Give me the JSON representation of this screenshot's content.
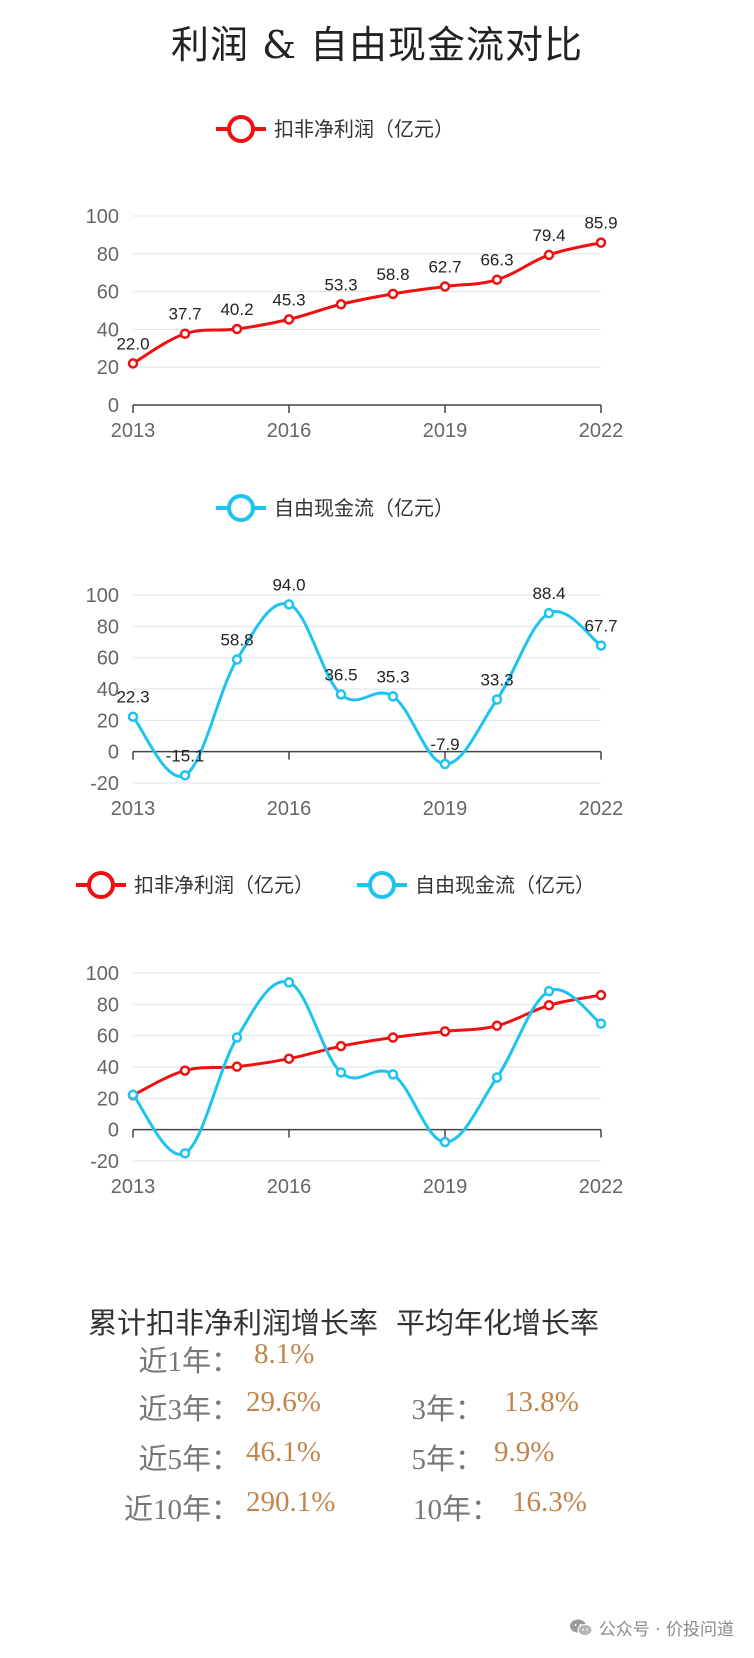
{
  "title": "利润 & 自由现金流对比",
  "colors": {
    "profit": "#ee1111",
    "fcf": "#1ec3f0",
    "axis": "#444444",
    "grid": "#e0e3ef",
    "tick": "#666666"
  },
  "legend": {
    "profit": "扣非净利润（亿元）",
    "fcf": "自由现金流（亿元）"
  },
  "chart_data": [
    {
      "type": "line",
      "title": "",
      "x": [
        2013,
        2014,
        2015,
        2016,
        2017,
        2018,
        2019,
        2020,
        2021,
        2022
      ],
      "x_tick_labels": [
        "2013",
        "2016",
        "2019",
        "2022"
      ],
      "y_tick_labels": [
        "0",
        "20",
        "40",
        "60",
        "80",
        "100"
      ],
      "ylim": [
        0,
        100
      ],
      "series": [
        {
          "name": "扣非净利润（亿元）",
          "values": [
            22.0,
            37.7,
            40.2,
            45.3,
            53.3,
            58.8,
            62.7,
            66.3,
            79.4,
            85.9
          ],
          "labels": [
            "22.0",
            "37.7",
            "40.2",
            "45.3",
            "53.3",
            "58.8",
            "62.7",
            "66.3",
            "79.4",
            "85.9"
          ]
        }
      ],
      "smooth": true,
      "grid": true,
      "legend_position": "top-center"
    },
    {
      "type": "line",
      "title": "",
      "x": [
        2013,
        2014,
        2015,
        2016,
        2017,
        2018,
        2019,
        2020,
        2021,
        2022
      ],
      "x_tick_labels": [
        "2013",
        "2016",
        "2019",
        "2022"
      ],
      "y_tick_labels": [
        "-20",
        "0",
        "20",
        "40",
        "60",
        "80",
        "100"
      ],
      "ylim": [
        -20,
        100
      ],
      "series": [
        {
          "name": "自由现金流（亿元）",
          "values": [
            22.3,
            -15.1,
            58.8,
            94.0,
            36.5,
            35.3,
            -7.9,
            33.3,
            88.4,
            67.7
          ],
          "labels": [
            "22.3",
            "-15.1",
            "58.8",
            "94.0",
            "36.5",
            "35.3",
            "-7.9",
            "33.3",
            "88.4",
            "67.7"
          ]
        }
      ],
      "smooth": true,
      "grid": true,
      "legend_position": "top-center"
    },
    {
      "type": "line",
      "title": "",
      "x": [
        2013,
        2014,
        2015,
        2016,
        2017,
        2018,
        2019,
        2020,
        2021,
        2022
      ],
      "x_tick_labels": [
        "2013",
        "2016",
        "2019",
        "2022"
      ],
      "y_tick_labels": [
        "-20",
        "0",
        "20",
        "40",
        "60",
        "80",
        "100"
      ],
      "ylim": [
        -20,
        100
      ],
      "series": [
        {
          "name": "扣非净利润（亿元）",
          "values": [
            22.0,
            37.7,
            40.2,
            45.3,
            53.3,
            58.8,
            62.7,
            66.3,
            79.4,
            85.9
          ]
        },
        {
          "name": "自由现金流（亿元）",
          "values": [
            22.3,
            -15.1,
            58.8,
            94.0,
            36.5,
            35.3,
            -7.9,
            33.3,
            88.4,
            67.7
          ]
        }
      ],
      "smooth": true,
      "grid": true,
      "legend_position": "top-center"
    }
  ],
  "stats": {
    "header_cumulative": "累计扣非净利润增长率",
    "header_average": "平均年化增长率",
    "rows": [
      {
        "cum_label": "近1年：",
        "cum_value": "8.1%",
        "avg_label": "",
        "avg_value": ""
      },
      {
        "cum_label": "近3年：",
        "cum_value": "29.6%",
        "avg_label": "3年：",
        "avg_value": "13.8%"
      },
      {
        "cum_label": "近5年：",
        "cum_value": "46.1%",
        "avg_label": "5年：",
        "avg_value": "9.9%"
      },
      {
        "cum_label": "近10年：",
        "cum_value": "290.1%",
        "avg_label": "10年：",
        "avg_value": "16.3%"
      }
    ]
  },
  "watermark": {
    "text": "公众号 · 价投问道",
    "icon": "wechat-icon"
  }
}
